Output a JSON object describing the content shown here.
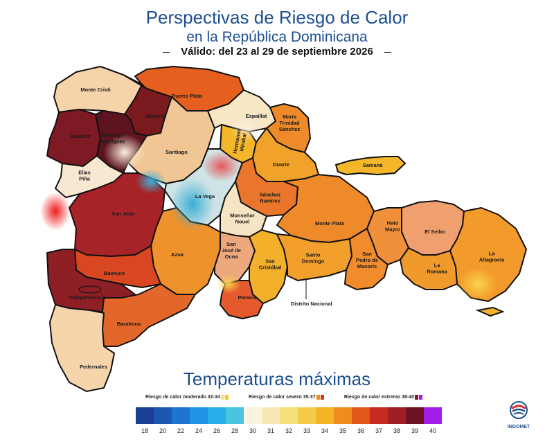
{
  "header": {
    "title": "Perspectivas de Riesgo de Calor",
    "subtitle": "en la República Dominicana",
    "valid_text": "Válido: del 23 al 29 de septiembre 2026"
  },
  "provinces": [
    {
      "name": "Monte Cristi",
      "lines": [
        "Monte Cristi"
      ],
      "color": "#f6d3a8"
    },
    {
      "name": "Valverde",
      "lines": [
        "Valverde"
      ],
      "color": "#7a1a1f"
    },
    {
      "name": "Puerto Plata",
      "lines": [
        "Puerto Plata"
      ],
      "color": "#e5601e"
    },
    {
      "name": "Dajabón",
      "lines": [
        "Dajabón"
      ],
      "color": "#7d1a24"
    },
    {
      "name": "Santiago Rodríguez",
      "lines": [
        "Santiago",
        "Rodríguez"
      ],
      "color": "#5e1420"
    },
    {
      "name": "Santiago",
      "lines": [
        "Santiago"
      ],
      "color": "#f1c695"
    },
    {
      "name": "Espaillat",
      "lines": [
        "Espaillat"
      ],
      "color": "#f8e6c5"
    },
    {
      "name": "Hermanas Mirabal",
      "lines": [
        "Hermanas",
        "Mirabal"
      ],
      "color": "#f5b72a"
    },
    {
      "name": "María Trinidad Sánchez",
      "lines": [
        "María",
        "Trinidad",
        "Sánchez"
      ],
      "color": "#ee8a2a"
    },
    {
      "name": "Duarte",
      "lines": [
        "Duarte"
      ],
      "color": "#f1a22b"
    },
    {
      "name": "Samaná",
      "lines": [
        "Samaná"
      ],
      "color": "#f4b72b"
    },
    {
      "name": "Elías Piña",
      "lines": [
        "Elías",
        "Piña"
      ],
      "color": "#f8e8d2"
    },
    {
      "name": "San Juan",
      "lines": [
        "San Juan"
      ],
      "color": "#a72328"
    },
    {
      "name": "La Vega",
      "lines": [
        "La Vega"
      ],
      "color": "#cfe3e6"
    },
    {
      "name": "Sánchez Ramírez",
      "lines": [
        "Sánchez",
        "Ramírez"
      ],
      "color": "#e9762a"
    },
    {
      "name": "Monte Plata",
      "lines": [
        "Monte Plata"
      ],
      "color": "#ef8a2b"
    },
    {
      "name": "Monseñor Nouel",
      "lines": [
        "Monseñor",
        "Nouel"
      ],
      "color": "#f7e4c4"
    },
    {
      "name": "El Seibo",
      "lines": [
        "El Seibo"
      ],
      "color": "#f0a06e"
    },
    {
      "name": "Hato Mayor",
      "lines": [
        "Hato",
        "Mayor"
      ],
      "color": "#f0903a"
    },
    {
      "name": "La Altagracia",
      "lines": [
        "La",
        "Altagracia"
      ],
      "color": "#f29a2c"
    },
    {
      "name": "Azua",
      "lines": [
        "Azua"
      ],
      "color": "#ef922b"
    },
    {
      "name": "San José de Ocoa",
      "lines": [
        "San",
        "José de",
        "Ocoa"
      ],
      "color": "#eea87d"
    },
    {
      "name": "San Cristóbal",
      "lines": [
        "San",
        "Cristóbal"
      ],
      "color": "#f3b12b"
    },
    {
      "name": "Santo Domingo",
      "lines": [
        "Santo",
        "Domingo"
      ],
      "color": "#f29f2c"
    },
    {
      "name": "San Pedro de Macorís",
      "lines": [
        "San",
        "Pedro de",
        "Macorís"
      ],
      "color": "#f08c2c"
    },
    {
      "name": "La Romana",
      "lines": [
        "La",
        "Romana"
      ],
      "color": "#f19a2c"
    },
    {
      "name": "Baoruco",
      "lines": [
        "Baoruco"
      ],
      "color": "#d94722"
    },
    {
      "name": "Independencia",
      "lines": [
        "Independencia"
      ],
      "color": "#8e1f25"
    },
    {
      "name": "Peravia",
      "lines": [
        "Peravia"
      ],
      "color": "#e45a2c"
    },
    {
      "name": "Barahona",
      "lines": [
        "Barahona"
      ],
      "color": "#e3672b"
    },
    {
      "name": "Pedernales",
      "lines": [
        "Pedernales"
      ],
      "color": "#f6d5ad"
    }
  ],
  "distrito_label": "Distrito Nacional",
  "legend": {
    "title": "Temperaturas máximas",
    "risk_levels": [
      {
        "label": "Riesgo de calor moderado 32-34",
        "swatches": [
          "#f5e07a",
          "#f7c538"
        ]
      },
      {
        "label": "Riesgo de calor severo 35-37",
        "swatches": [
          "#f08a1e",
          "#d1371c"
        ]
      },
      {
        "label": "Riesgo de calor extremo 38-40",
        "swatches": [
          "#8b1426",
          "#a21ee6"
        ]
      }
    ],
    "scale": [
      {
        "value": "18",
        "color": "#1a3f93"
      },
      {
        "value": "20",
        "color": "#1c57b2"
      },
      {
        "value": "22",
        "color": "#1e74cf"
      },
      {
        "value": "24",
        "color": "#2092e3"
      },
      {
        "value": "26",
        "color": "#2aaee8"
      },
      {
        "value": "28",
        "color": "#48c4dc"
      },
      {
        "value": "30",
        "color": "#fbf3de"
      },
      {
        "value": "31",
        "color": "#f8e9b4"
      },
      {
        "value": "32",
        "color": "#f4e07c"
      },
      {
        "value": "33",
        "color": "#f6cb4c"
      },
      {
        "value": "34",
        "color": "#f3b425"
      },
      {
        "value": "35",
        "color": "#ef8c1d"
      },
      {
        "value": "36",
        "color": "#e2561c"
      },
      {
        "value": "37",
        "color": "#c52c1f"
      },
      {
        "value": "38",
        "color": "#a11d24"
      },
      {
        "value": "39",
        "color": "#6c1220"
      },
      {
        "value": "40",
        "color": "#a21ee6"
      }
    ]
  },
  "logo": {
    "name": "INDOMET"
  }
}
